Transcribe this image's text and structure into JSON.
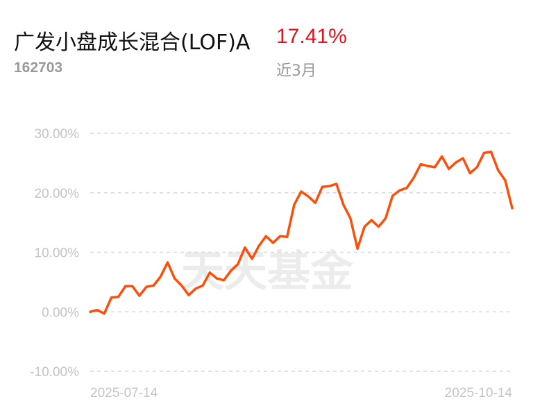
{
  "header": {
    "fund_name": "广发小盘成长混合(LOF)A",
    "return": "17.41%",
    "code": "162703",
    "period": "近3月"
  },
  "watermark": "天天基金",
  "colors": {
    "line": "#ff4e0a",
    "return_red": "#e8101a",
    "grid": "#d9d9d9",
    "axis_text": "#c4c4c4"
  },
  "chart_data": {
    "type": "line",
    "title": "",
    "xlabel": "",
    "ylabel": "",
    "ylim": [
      -10,
      30
    ],
    "yticks": [
      30,
      20,
      10,
      0,
      -10
    ],
    "ytick_labels": [
      "30.00%",
      "20.00%",
      "10.00%",
      "0.00%",
      "-10.00%"
    ],
    "xtick_labels": [
      "2025-07-14",
      "2025-10-14"
    ],
    "grid": true,
    "series": [
      {
        "values": [
          0.0,
          0.3,
          -0.3,
          2.4,
          2.5,
          4.3,
          4.3,
          2.7,
          4.2,
          4.4,
          5.9,
          8.3,
          5.6,
          4.4,
          2.8,
          3.9,
          4.4,
          6.6,
          5.6,
          5.3,
          6.9,
          8.0,
          10.8,
          8.9,
          11.1,
          12.7,
          11.6,
          12.7,
          12.6,
          18.0,
          20.2,
          19.4,
          18.3,
          21.0,
          21.1,
          21.5,
          18.0,
          15.7,
          10.6,
          14.3,
          15.4,
          14.3,
          15.7,
          19.5,
          20.4,
          20.8,
          22.5,
          24.8,
          24.5,
          24.3,
          26.1,
          24.0,
          25.1,
          25.8,
          23.3,
          24.3,
          26.7,
          26.9,
          23.8,
          22.1,
          17.41
        ]
      }
    ]
  }
}
